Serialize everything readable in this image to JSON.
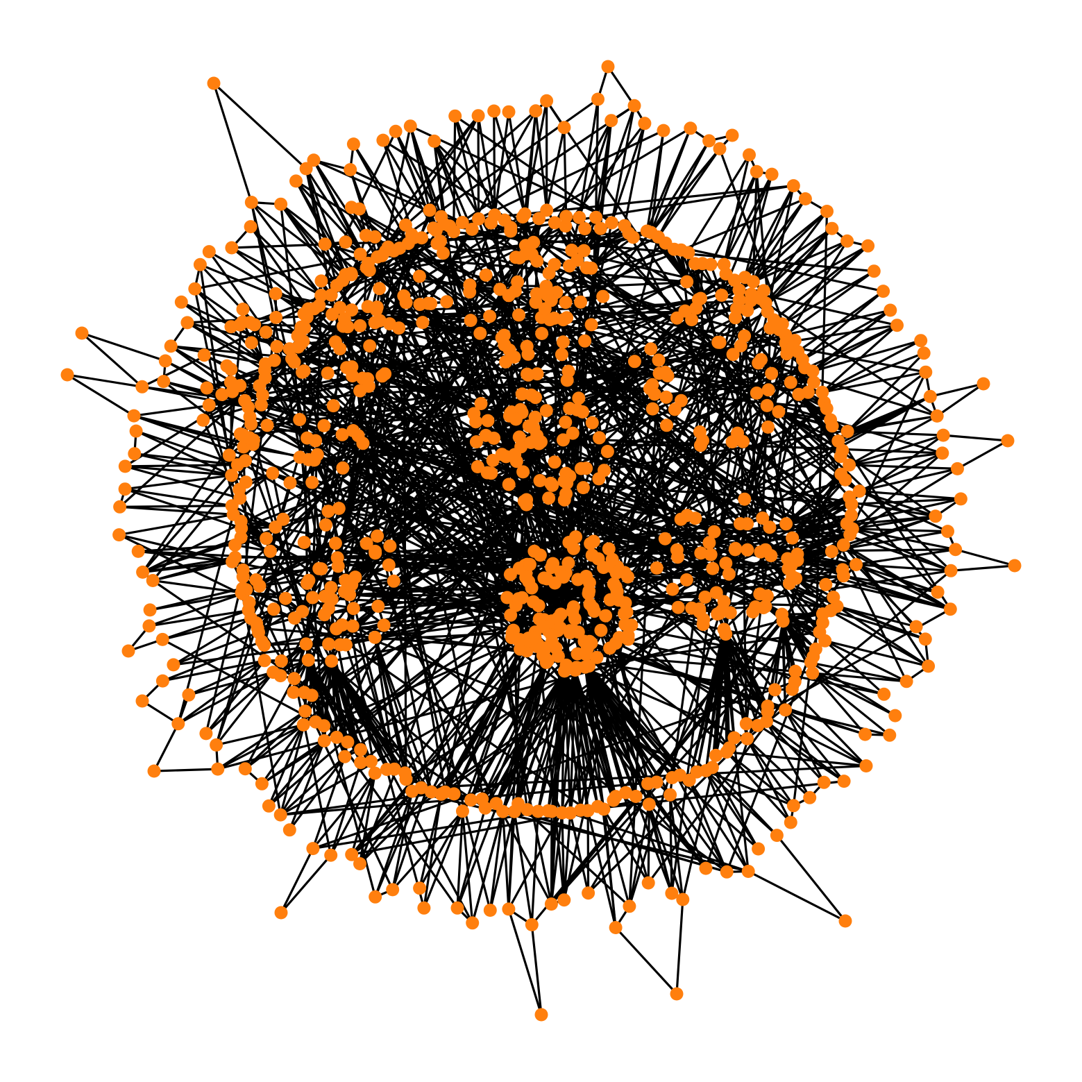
{
  "diagram": {
    "type": "network-graph",
    "layout": "spring",
    "colors": {
      "background": "#ffffff",
      "node": "#ff7f0e",
      "edge": "#000000"
    },
    "labels_shown": false,
    "legend_shown": false,
    "axes_shown": false
  }
}
